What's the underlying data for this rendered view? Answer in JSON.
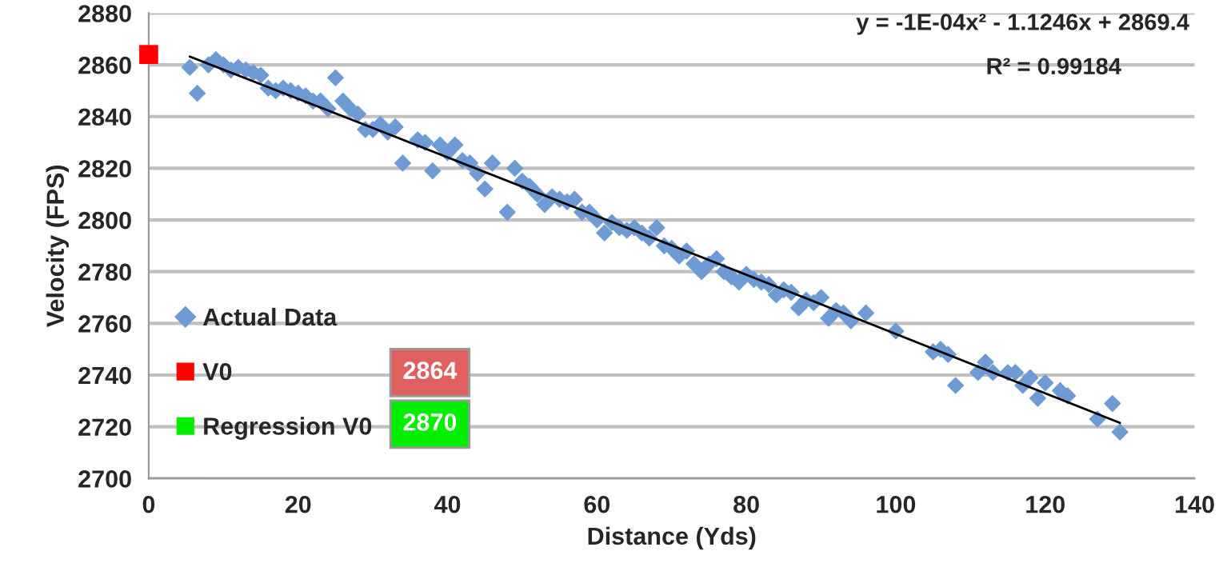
{
  "chart_data": {
    "type": "scatter",
    "xlabel": "Distance (Yds)",
    "ylabel": "Velocity (FPS)",
    "xlim": [
      0,
      140
    ],
    "xticks": [
      0,
      20,
      40,
      60,
      80,
      100,
      120,
      140
    ],
    "ylim": [
      2700,
      2880
    ],
    "yticks": [
      2700,
      2720,
      2740,
      2760,
      2780,
      2800,
      2820,
      2840,
      2860,
      2880
    ],
    "grid": "y",
    "legend": "left",
    "annotations": [
      "y = -1E-04x² - 1.1246x + 2869.4",
      "R² = 0.99184",
      "2864",
      "2870"
    ],
    "series": [
      {
        "name": "Actual Data",
        "color": "#6f9bd4",
        "marker": "diamond",
        "x": [
          5.5,
          6.5,
          8,
          9,
          10,
          11,
          12,
          13,
          14,
          15,
          16,
          17,
          18,
          19,
          20,
          21,
          22,
          23,
          24,
          25,
          26,
          27,
          28,
          29,
          30,
          31,
          32,
          33,
          34,
          36,
          37,
          38,
          39,
          40,
          41,
          42,
          43,
          44,
          45,
          46,
          48,
          49,
          50,
          51,
          52,
          53,
          54,
          55,
          56,
          57,
          58,
          59,
          60,
          61,
          62,
          63,
          64,
          65,
          66,
          67,
          68,
          69,
          70,
          71,
          72,
          73,
          74,
          75,
          76,
          77,
          78,
          79,
          80,
          81,
          82,
          83,
          84,
          85,
          86,
          87,
          88,
          89,
          90,
          91,
          92,
          93,
          94,
          96,
          100,
          105,
          106,
          107,
          108,
          111,
          112,
          113,
          115,
          116,
          117,
          118,
          119,
          120,
          122,
          123,
          127,
          129,
          130
        ],
        "values": [
          2859,
          2849,
          2860,
          2862,
          2860,
          2858,
          2859,
          2858,
          2857,
          2856,
          2851,
          2850,
          2851,
          2850,
          2849,
          2848,
          2846,
          2846,
          2843,
          2855,
          2846,
          2843,
          2841,
          2835,
          2835,
          2837,
          2834,
          2836,
          2822,
          2831,
          2830,
          2819,
          2829,
          2826,
          2829,
          2823,
          2822,
          2818,
          2812,
          2822,
          2803,
          2820,
          2815,
          2813,
          2810,
          2806,
          2809,
          2808,
          2807,
          2808,
          2803,
          2803,
          2800,
          2795,
          2799,
          2797,
          2796,
          2797,
          2795,
          2793,
          2797,
          2790,
          2789,
          2786,
          2788,
          2783,
          2780,
          2783,
          2785,
          2780,
          2778,
          2776,
          2779,
          2777,
          2776,
          2775,
          2771,
          2773,
          2772,
          2766,
          2769,
          2768,
          2770,
          2762,
          2765,
          2764,
          2761,
          2764,
          2757,
          2749,
          2750,
          2748,
          2736,
          2741,
          2745,
          2741,
          2741,
          2741,
          2736,
          2739,
          2731,
          2737,
          2734,
          2732,
          2723,
          2729,
          2718
        ]
      },
      {
        "name": "V0",
        "color": "#ff0000",
        "marker": "square",
        "x": [
          0
        ],
        "values": [
          2864
        ]
      },
      {
        "name": "Regression V0",
        "color": "#00ee00",
        "marker": "square"
      },
      {
        "type": "line",
        "color": "#000000",
        "marker": "none",
        "x": [
          5.5,
          30,
          60,
          90,
          130
        ],
        "values": [
          2863.2,
          2835.6,
          2801.5,
          2767.4,
          2721.5
        ]
      }
    ]
  }
}
